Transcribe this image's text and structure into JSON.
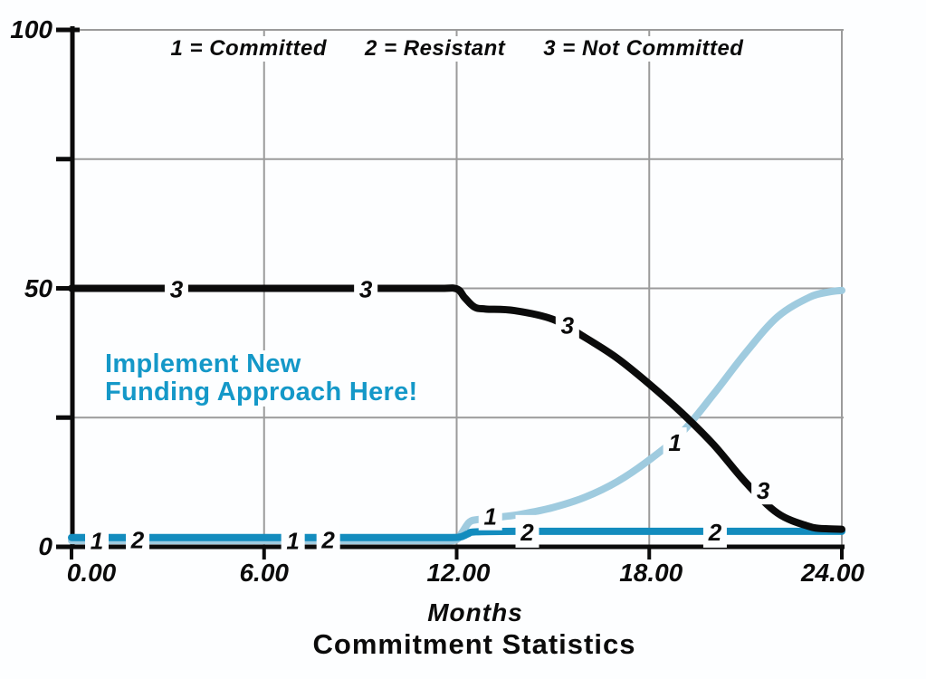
{
  "legend": {
    "items": [
      "1 = Committed",
      "2 = Resistant",
      "3 = Not Committed"
    ]
  },
  "annotation": {
    "line1": "Implement New",
    "line2": "Funding Approach Here!",
    "color": "#1498C8"
  },
  "colors": {
    "committed_line": "#9FCBDF",
    "resistant_line": "#138CBE",
    "not_committed_line": "#0B0B0B",
    "grid": "#9B9B9B",
    "axis": "#0B0B0B",
    "label_text": "#0b0b0b",
    "background": "#fdfeff"
  },
  "chart_data": {
    "type": "line",
    "title": "Commitment Statistics",
    "xlabel": "Months",
    "xlim": [
      0,
      24
    ],
    "ylim": [
      0,
      100
    ],
    "x_ticks": [
      {
        "value": 0,
        "label": "0.00",
        "label_dx": 22
      },
      {
        "value": 6,
        "label": "6.00",
        "label_dx": 0
      },
      {
        "value": 12,
        "label": "12.00",
        "label_dx": 2
      },
      {
        "value": 18,
        "label": "18.00",
        "label_dx": 2
      },
      {
        "value": 24,
        "label": "24.00",
        "label_dx": -10
      }
    ],
    "y_ticks": [
      {
        "value": 0,
        "label": "0"
      },
      {
        "value": 50,
        "label": "50"
      },
      {
        "value": 100,
        "label": "100"
      }
    ],
    "y_minor_ticks": [
      25,
      75
    ],
    "grid_x_values": [
      6,
      12,
      18,
      24
    ],
    "grid_y_values": [
      25,
      50,
      75,
      100
    ],
    "grid_on": true,
    "legend_position": "top-center",
    "series": [
      {
        "id": "1",
        "name": "Committed",
        "color": "#9FCBDF",
        "width": 8,
        "points": [
          [
            0,
            1.2
          ],
          [
            3,
            1.2
          ],
          [
            6,
            1.2
          ],
          [
            9,
            1.2
          ],
          [
            11.3,
            1.2
          ],
          [
            11.95,
            1.3
          ],
          [
            12.15,
            2.6
          ],
          [
            12.4,
            4.8
          ],
          [
            12.7,
            5.3
          ],
          [
            13.4,
            5.8
          ],
          [
            14,
            6.3
          ],
          [
            15,
            7.6
          ],
          [
            16,
            9.6
          ],
          [
            17,
            12.6
          ],
          [
            18,
            16.8
          ],
          [
            19,
            22
          ],
          [
            20,
            29.5
          ],
          [
            21,
            37.5
          ],
          [
            22,
            44.5
          ],
          [
            23,
            48.3
          ],
          [
            23.6,
            49.3
          ],
          [
            24,
            49.6
          ]
        ],
        "labels": [
          [
            0.79,
            1.3
          ],
          [
            6.9,
            1.3
          ],
          [
            13.05,
            6.0
          ],
          [
            18.8,
            20.3
          ]
        ]
      },
      {
        "id": "2",
        "name": "Resistant",
        "color": "#138CBE",
        "width": 8,
        "points": [
          [
            0,
            1.8
          ],
          [
            3,
            1.8
          ],
          [
            6,
            1.8
          ],
          [
            9,
            1.8
          ],
          [
            11.6,
            1.8
          ],
          [
            12.1,
            1.9
          ],
          [
            12.35,
            2.5
          ],
          [
            12.6,
            2.9
          ],
          [
            14,
            3
          ],
          [
            17,
            3
          ],
          [
            20,
            3
          ],
          [
            24,
            3
          ]
        ],
        "labels": [
          [
            2.06,
            1.5
          ],
          [
            8.0,
            1.5
          ],
          [
            14.2,
            3.0
          ],
          [
            20.05,
            3.0
          ]
        ]
      },
      {
        "id": "3",
        "name": "Not Committed",
        "color": "#0B0B0B",
        "width": 8,
        "points": [
          [
            0,
            50
          ],
          [
            3,
            50
          ],
          [
            6,
            50
          ],
          [
            9,
            50
          ],
          [
            11.4,
            50
          ],
          [
            12.0,
            49.9
          ],
          [
            12.25,
            48.2
          ],
          [
            12.55,
            46.4
          ],
          [
            12.9,
            46
          ],
          [
            13.8,
            45.7
          ],
          [
            15,
            44
          ],
          [
            16,
            40.5
          ],
          [
            17,
            36.5
          ],
          [
            18,
            31.5
          ],
          [
            19,
            26
          ],
          [
            20,
            19.8
          ],
          [
            21,
            12.5
          ],
          [
            22,
            6.5
          ],
          [
            23,
            3.9
          ],
          [
            23.5,
            3.5
          ],
          [
            24,
            3.4
          ]
        ],
        "labels": [
          [
            3.27,
            50
          ],
          [
            9.17,
            50
          ],
          [
            15.45,
            43
          ],
          [
            21.55,
            11
          ]
        ]
      }
    ]
  }
}
